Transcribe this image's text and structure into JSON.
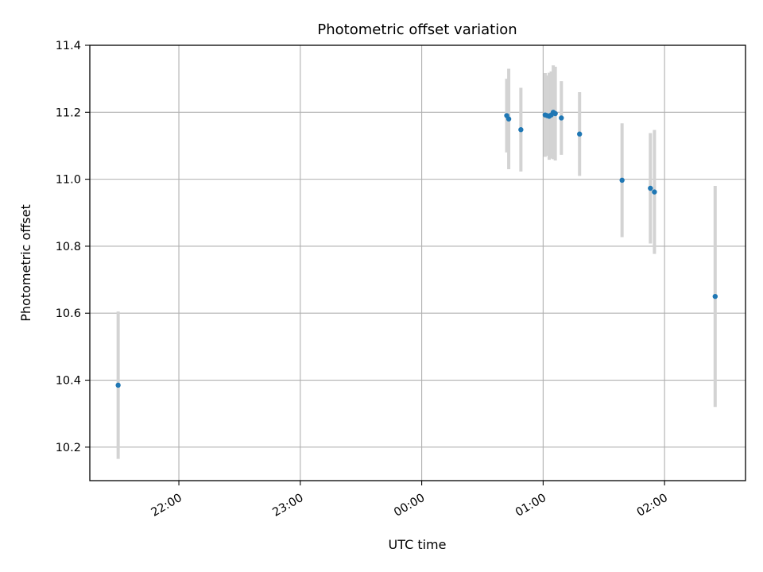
{
  "chart_data": {
    "type": "scatter",
    "title": "Photometric offset variation",
    "xlabel": "UTC time",
    "ylabel": "Photometric offset",
    "x_tick_labels": [
      "22:00",
      "23:00",
      "00:00",
      "01:00",
      "02:00"
    ],
    "x_ticks": [
      "22:00",
      "23:00",
      "00:00",
      "01:00",
      "02:00"
    ],
    "y_ticks": [
      10.2,
      10.4,
      10.6,
      10.8,
      11.0,
      11.2,
      11.4
    ],
    "y_tick_labels": [
      "10.2",
      "10.4",
      "10.6",
      "10.8",
      "11.0",
      "11.2",
      "11.4"
    ],
    "xlim": [
      "21:16",
      "02:40"
    ],
    "ylim": [
      10.1,
      11.4
    ],
    "grid": true,
    "colors": {
      "points": "#1f77b4",
      "error_bars": "#d3d3d3",
      "grid": "#b0b0b0"
    },
    "points": [
      {
        "t": "21:30",
        "y": 10.385,
        "err": 0.22
      },
      {
        "t": "00:42",
        "y": 11.19,
        "err": 0.11
      },
      {
        "t": "00:43",
        "y": 11.18,
        "err": 0.15
      },
      {
        "t": "00:49",
        "y": 11.148,
        "err": 0.125
      },
      {
        "t": "01:01",
        "y": 11.192,
        "err": 0.125
      },
      {
        "t": "01:02",
        "y": 11.19,
        "err": 0.12
      },
      {
        "t": "01:03",
        "y": 11.188,
        "err": 0.13
      },
      {
        "t": "01:04",
        "y": 11.192,
        "err": 0.13
      },
      {
        "t": "01:05",
        "y": 11.2,
        "err": 0.14
      },
      {
        "t": "01:06",
        "y": 11.196,
        "err": 0.14
      },
      {
        "t": "01:09",
        "y": 11.183,
        "err": 0.11
      },
      {
        "t": "01:18",
        "y": 11.135,
        "err": 0.125
      },
      {
        "t": "01:39",
        "y": 10.997,
        "err": 0.17
      },
      {
        "t": "01:53",
        "y": 10.973,
        "err": 0.165
      },
      {
        "t": "01:55",
        "y": 10.962,
        "err": 0.185
      },
      {
        "t": "02:25",
        "y": 10.65,
        "err": 0.33
      }
    ]
  }
}
